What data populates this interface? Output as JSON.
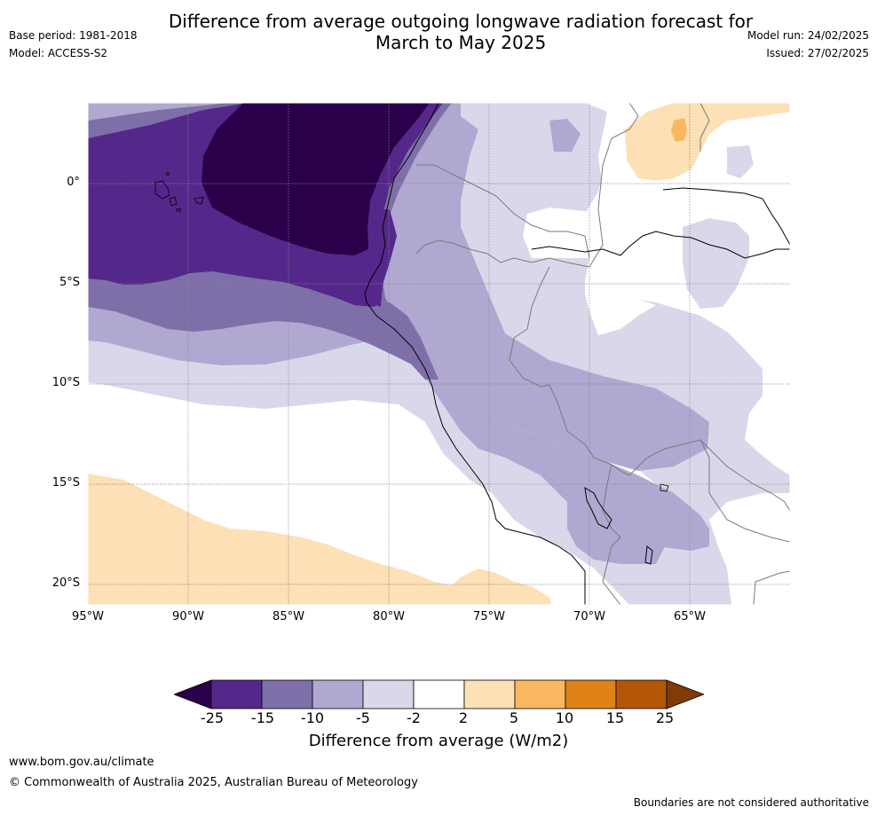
{
  "title_line1": "Difference from average outgoing longwave radiation forecast for",
  "title_line2": "March to May 2025",
  "meta_left": [
    "Base period: 1981-2018",
    "Model: ACCESS-S2"
  ],
  "meta_right": [
    "Model run: 24/02/2025",
    "Issued: 27/02/2025"
  ],
  "map": {
    "lon_range": [
      -95,
      -60
    ],
    "lat_range": [
      -21,
      4
    ],
    "lat_labels": [
      "0°",
      "5°S",
      "10°S",
      "15°S",
      "20°S"
    ],
    "lat_values": [
      0,
      -5,
      -10,
      -15,
      -20
    ],
    "lon_labels": [
      "95°W",
      "90°W",
      "85°W",
      "80°W",
      "75°W",
      "70°W",
      "65°W"
    ],
    "lon_values": [
      -95,
      -90,
      -85,
      -80,
      -75,
      -70,
      -65
    ],
    "colors": {
      "lt_-25": "#2a004a",
      "-25_-15": "#53288a",
      "-15_-10": "#7f6fa8",
      "-10_-5": "#b0a8d0",
      "-5_-2": "#d8d8ea",
      "-2_2": "#ffffff",
      "2_5": "#fde0b5",
      "5_10": "#f9b75f",
      "10_15": "#e08218",
      "15_25": "#b35707",
      "gt_25": "#7f3b08"
    }
  },
  "colorbar": {
    "ticks": [
      "-25",
      "-15",
      "-10",
      "-5",
      "-2",
      "2",
      "5",
      "10",
      "15",
      "25"
    ],
    "colors": [
      "#53288a",
      "#7f6fa8",
      "#b0a8d0",
      "#d8d8ea",
      "#ffffff",
      "#fde0b5",
      "#f9b75f",
      "#e08218",
      "#b35707"
    ],
    "under_color": "#2a004a",
    "over_color": "#7f3b08",
    "label": "Difference from average (W/m2)"
  },
  "footer": {
    "url": "www.bom.gov.au/climate",
    "copyright": "© Commonwealth of Australia 2025, Australian Bureau of Meteorology",
    "disclaimer": "Boundaries are not considered authoritative"
  }
}
